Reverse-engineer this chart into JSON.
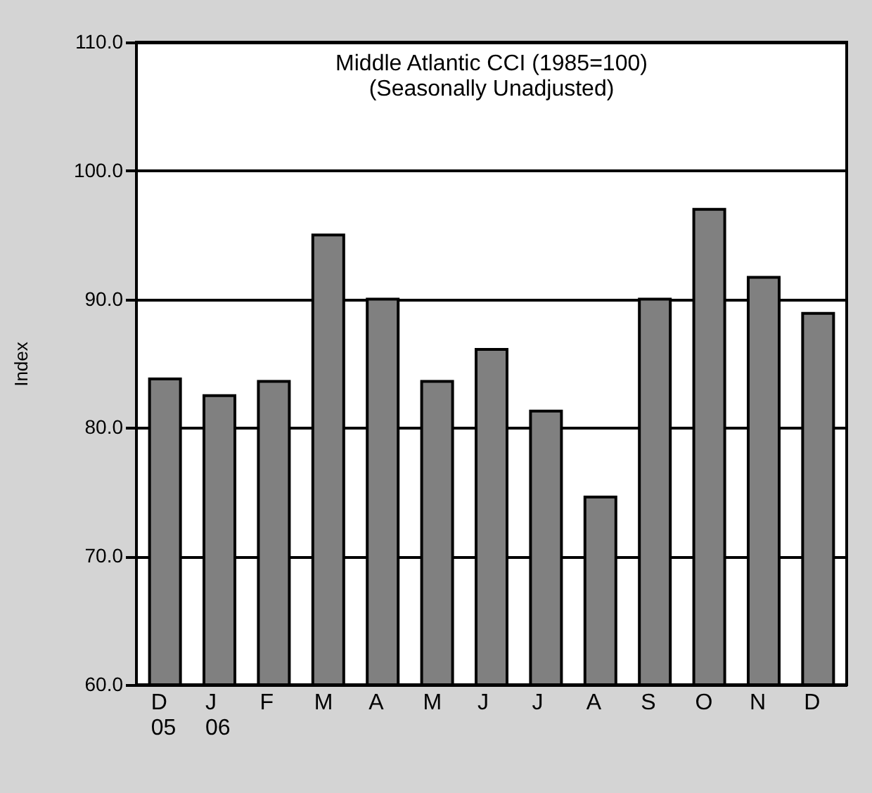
{
  "chart_data": {
    "type": "bar",
    "title": [
      "Middle Atlantic CCI (1985=100)",
      "(Seasonally Unadjusted)"
    ],
    "ylabel": "Index",
    "categories": [
      "D\n05",
      "J\n06",
      "F",
      "M",
      "A",
      "M",
      "J",
      "J",
      "A",
      "S",
      "O",
      "N",
      "D"
    ],
    "values": [
      83.8,
      82.5,
      83.6,
      95.0,
      90.0,
      83.6,
      86.1,
      81.3,
      74.6,
      90.0,
      97.0,
      91.7,
      88.9
    ],
    "color": "#808080",
    "ylim": [
      60,
      110
    ],
    "yticks": [
      {
        "value": 60,
        "label": "60.0"
      },
      {
        "value": 70,
        "label": "70.0"
      },
      {
        "value": 80,
        "label": "80.0"
      },
      {
        "value": 90,
        "label": "90.0"
      },
      {
        "value": 100,
        "label": "100.0"
      },
      {
        "value": 110,
        "label": "110.0"
      }
    ],
    "grid": "y"
  }
}
